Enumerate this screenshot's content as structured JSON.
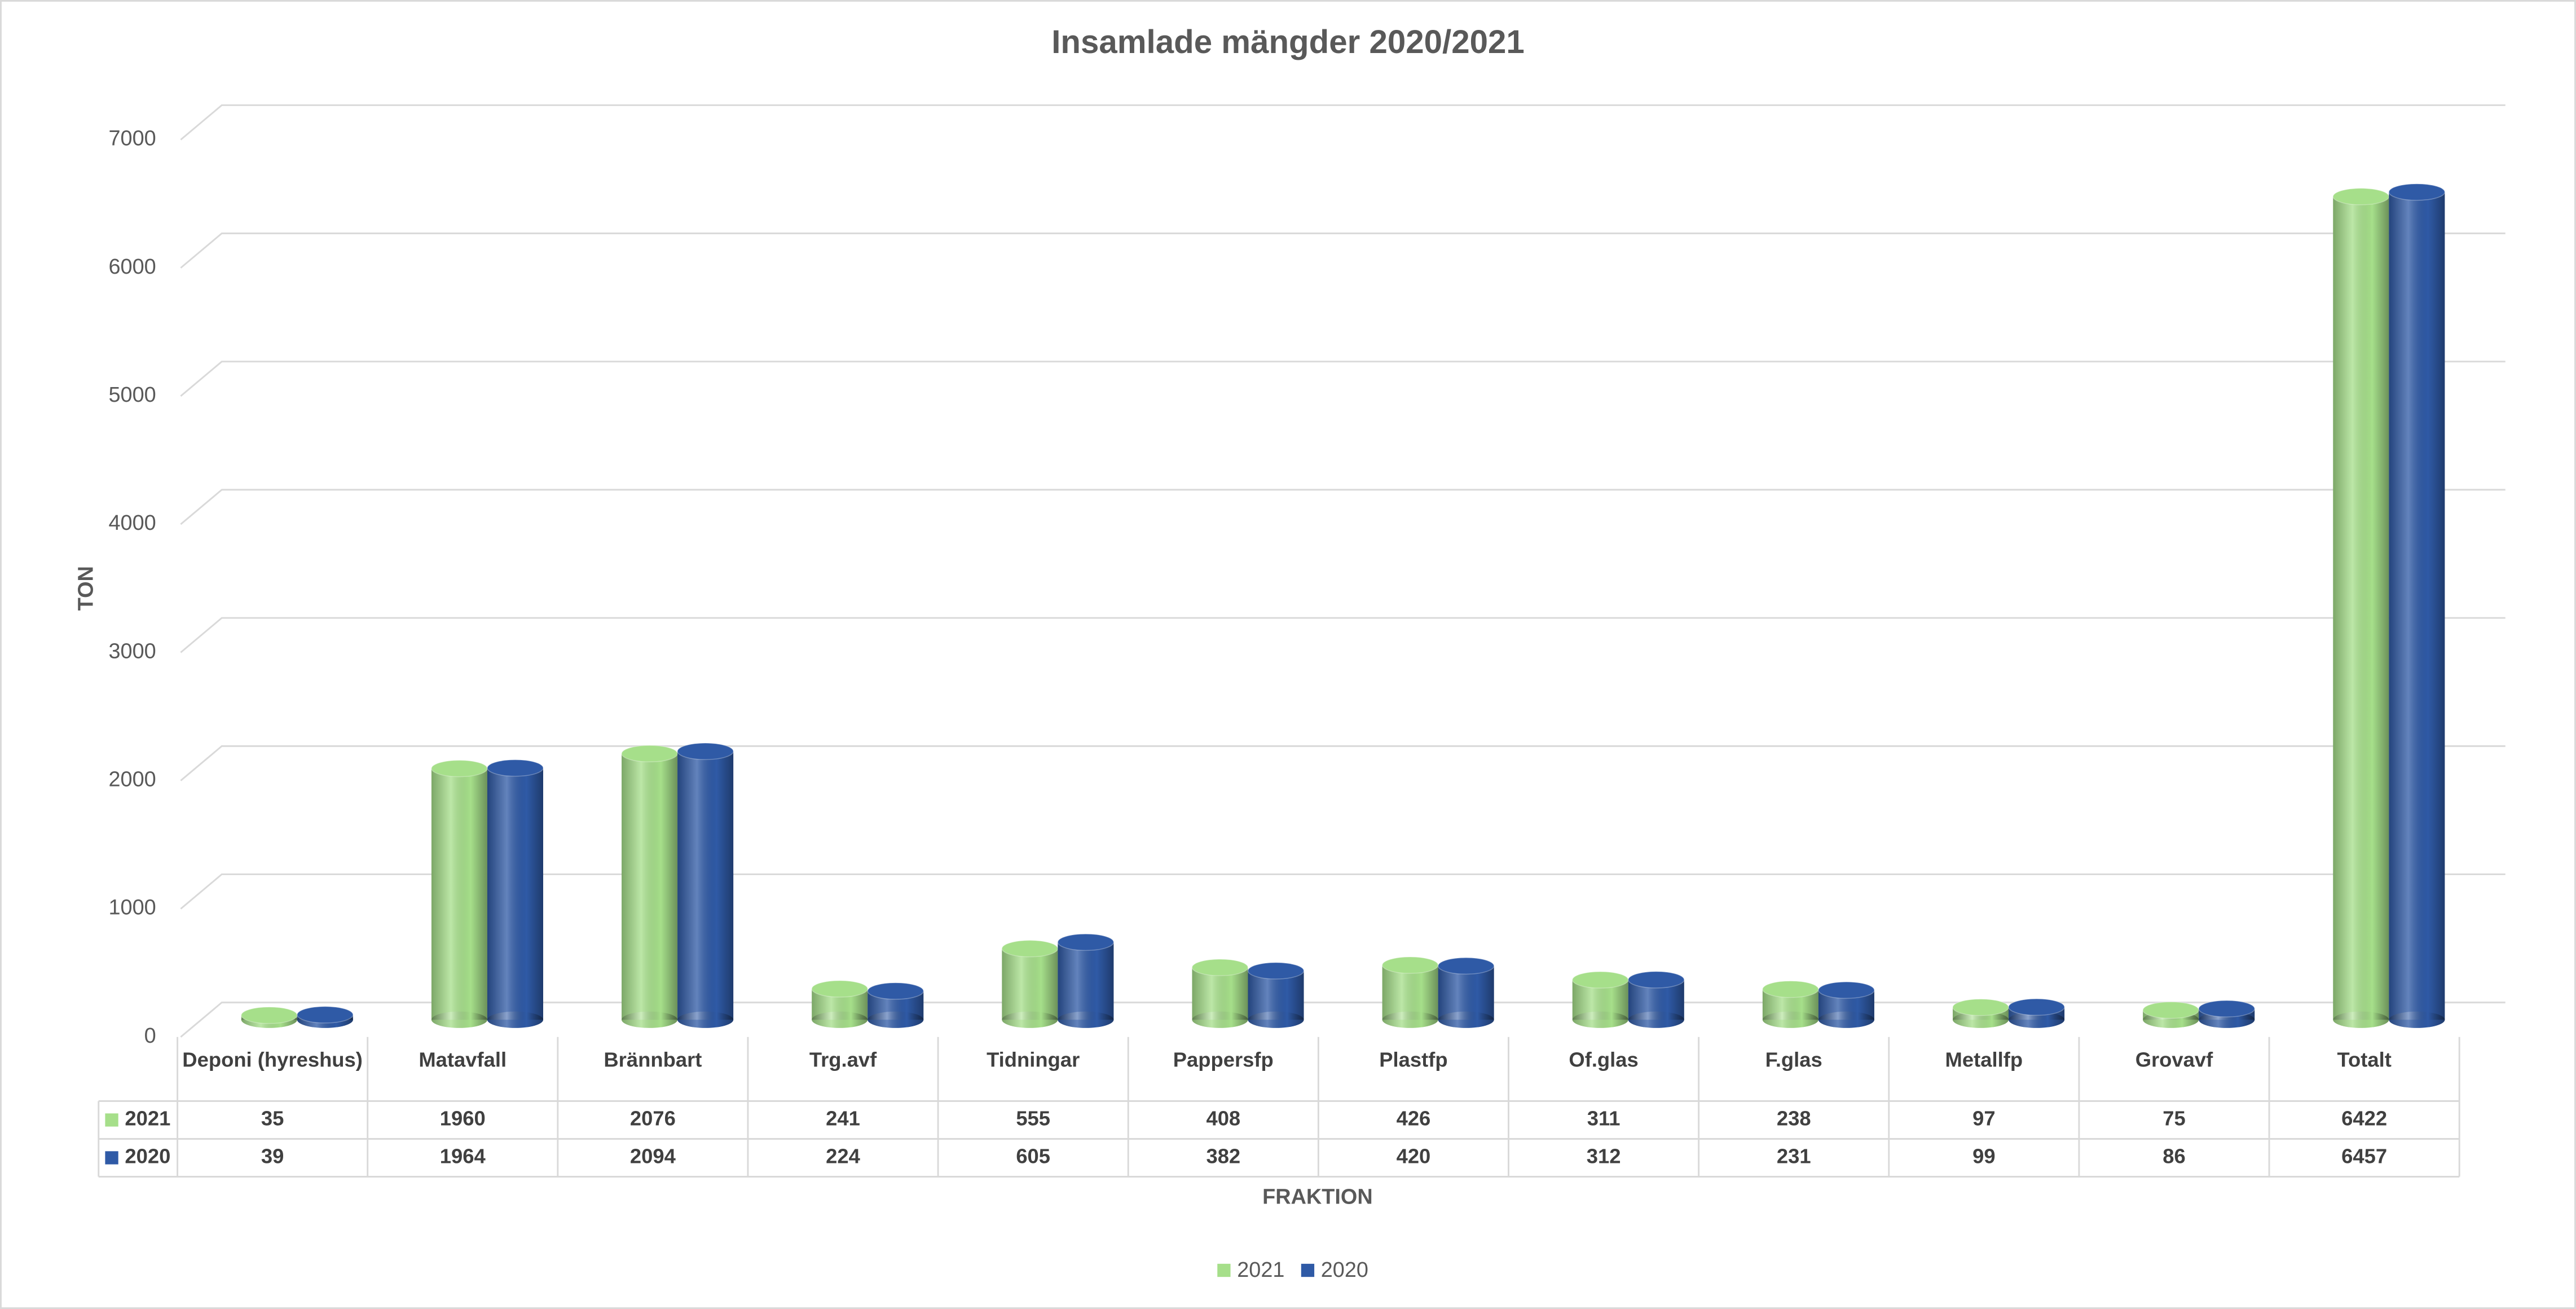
{
  "chart_data": {
    "type": "bar",
    "title": "Insamlade mängder 2020/2021",
    "x_label": "FRAKTION",
    "y_label": "TON",
    "categories": [
      "Deponi (hyreshus)",
      "Matavfall",
      "Brännbart",
      "Trg.avf",
      "Tidningar",
      "Pappersfp",
      "Plastfp",
      "Of.glas",
      "F.glas",
      "Metallfp",
      "Grovavf",
      "Totalt"
    ],
    "series": [
      {
        "name": "2021",
        "color": "#a6df8a",
        "values": [
          35,
          1960,
          2076,
          241,
          555,
          408,
          426,
          311,
          238,
          97,
          75,
          6422
        ]
      },
      {
        "name": "2020",
        "color": "#2f5aa6",
        "values": [
          39,
          1964,
          2094,
          224,
          605,
          382,
          420,
          312,
          231,
          99,
          86,
          6457
        ]
      }
    ],
    "ylim": [
      0,
      7000
    ],
    "yticks": [
      0,
      1000,
      2000,
      3000,
      4000,
      5000,
      6000,
      7000
    ],
    "grid": true,
    "legend": "bottom",
    "data_table": true
  }
}
